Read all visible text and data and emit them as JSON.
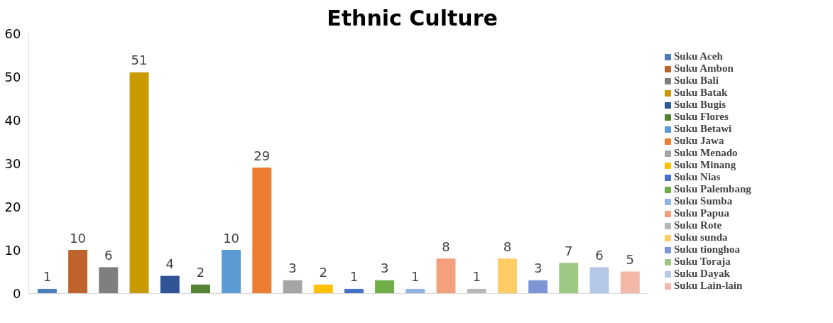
{
  "chart_data": {
    "type": "bar",
    "title": "Ethnic Culture",
    "categories": [
      null,
      null,
      null,
      null,
      null,
      null,
      null,
      null,
      null,
      null,
      null,
      null,
      null,
      null,
      null,
      null,
      null,
      null,
      null,
      null
    ],
    "series": [
      {
        "name": "Suku Aceh",
        "color": "#4a7ebb",
        "values": [
          1,
          null,
          null,
          null,
          null,
          null,
          null,
          null,
          null,
          null,
          null,
          null,
          null,
          null,
          null,
          null,
          null,
          null,
          null,
          null
        ]
      },
      {
        "name": "Suku Ambon",
        "color": "#c0622b",
        "values": [
          null,
          10,
          null,
          null,
          null,
          null,
          null,
          null,
          null,
          null,
          null,
          null,
          null,
          null,
          null,
          null,
          null,
          null,
          null,
          null
        ]
      },
      {
        "name": "Suku Bali",
        "color": "#7f7f7f",
        "values": [
          null,
          null,
          6,
          null,
          null,
          null,
          null,
          null,
          null,
          null,
          null,
          null,
          null,
          null,
          null,
          null,
          null,
          null,
          null,
          null
        ]
      },
      {
        "name": "Suku Batak",
        "color": "#c99a00",
        "values": [
          null,
          null,
          null,
          51,
          null,
          null,
          null,
          null,
          null,
          null,
          null,
          null,
          null,
          null,
          null,
          null,
          null,
          null,
          null,
          null
        ]
      },
      {
        "name": "Suku Bugis",
        "color": "#2f5597",
        "values": [
          null,
          null,
          null,
          null,
          4,
          null,
          null,
          null,
          null,
          null,
          null,
          null,
          null,
          null,
          null,
          null,
          null,
          null,
          null,
          null
        ]
      },
      {
        "name": "Suku Flores",
        "color": "#548235",
        "values": [
          null,
          null,
          null,
          null,
          null,
          2,
          null,
          null,
          null,
          null,
          null,
          null,
          null,
          null,
          null,
          null,
          null,
          null,
          null,
          null
        ]
      },
      {
        "name": "Suku Betawi",
        "color": "#5b9bd5",
        "values": [
          null,
          null,
          null,
          null,
          null,
          null,
          10,
          null,
          null,
          null,
          null,
          null,
          null,
          null,
          null,
          null,
          null,
          null,
          null,
          null
        ]
      },
      {
        "name": "Suku Jawa",
        "color": "#ed7d31",
        "values": [
          null,
          null,
          null,
          null,
          null,
          null,
          null,
          29,
          null,
          null,
          null,
          null,
          null,
          null,
          null,
          null,
          null,
          null,
          null,
          null
        ]
      },
      {
        "name": "Suku Menado",
        "color": "#a5a5a5",
        "values": [
          null,
          null,
          null,
          null,
          null,
          null,
          null,
          null,
          3,
          null,
          null,
          null,
          null,
          null,
          null,
          null,
          null,
          null,
          null,
          null
        ]
      },
      {
        "name": "Suku Minang",
        "color": "#ffc000",
        "values": [
          null,
          null,
          null,
          null,
          null,
          null,
          null,
          null,
          null,
          2,
          null,
          null,
          null,
          null,
          null,
          null,
          null,
          null,
          null,
          null
        ]
      },
      {
        "name": "Suku Nias",
        "color": "#4472c4",
        "values": [
          null,
          null,
          null,
          null,
          null,
          null,
          null,
          null,
          null,
          null,
          1,
          null,
          null,
          null,
          null,
          null,
          null,
          null,
          null,
          null
        ]
      },
      {
        "name": "Suku Palembang",
        "color": "#70ad47",
        "values": [
          null,
          null,
          null,
          null,
          null,
          null,
          null,
          null,
          null,
          null,
          null,
          3,
          null,
          null,
          null,
          null,
          null,
          null,
          null,
          null
        ]
      },
      {
        "name": "Suku Sumba",
        "color": "#8fb4e3",
        "values": [
          null,
          null,
          null,
          null,
          null,
          null,
          null,
          null,
          null,
          null,
          null,
          null,
          1,
          null,
          null,
          null,
          null,
          null,
          null,
          null
        ]
      },
      {
        "name": "Suku Papua",
        "color": "#f4a07c",
        "values": [
          null,
          null,
          null,
          null,
          null,
          null,
          null,
          null,
          null,
          null,
          null,
          null,
          null,
          8,
          null,
          null,
          null,
          null,
          null,
          null
        ]
      },
      {
        "name": "Suku Rote",
        "color": "#b7b7b7",
        "values": [
          null,
          null,
          null,
          null,
          null,
          null,
          null,
          null,
          null,
          null,
          null,
          null,
          null,
          null,
          1,
          null,
          null,
          null,
          null,
          null
        ]
      },
      {
        "name": "Suku sunda",
        "color": "#ffcc66",
        "values": [
          null,
          null,
          null,
          null,
          null,
          null,
          null,
          null,
          null,
          null,
          null,
          null,
          null,
          null,
          null,
          8,
          null,
          null,
          null,
          null
        ]
      },
      {
        "name": "Suku tionghoa",
        "color": "#7f96d6",
        "values": [
          null,
          null,
          null,
          null,
          null,
          null,
          null,
          null,
          null,
          null,
          null,
          null,
          null,
          null,
          null,
          null,
          3,
          null,
          null,
          null
        ]
      },
      {
        "name": "Suku Toraja",
        "color": "#9dc884",
        "values": [
          null,
          null,
          null,
          null,
          null,
          null,
          null,
          null,
          null,
          null,
          null,
          null,
          null,
          null,
          null,
          null,
          null,
          7,
          null,
          null
        ]
      },
      {
        "name": "Suku Dayak",
        "color": "#b4c7e7",
        "values": [
          null,
          null,
          null,
          null,
          null,
          null,
          null,
          null,
          null,
          null,
          null,
          null,
          null,
          null,
          null,
          null,
          null,
          null,
          6,
          null
        ]
      },
      {
        "name": "Suku Lain-lain",
        "color": "#f4b8a8",
        "values": [
          null,
          null,
          null,
          null,
          null,
          null,
          null,
          null,
          null,
          null,
          null,
          null,
          null,
          null,
          null,
          null,
          null,
          null,
          null,
          5
        ]
      }
    ],
    "ylim": [
      0,
      60
    ],
    "yticks": [
      0,
      10,
      20,
      30,
      40,
      50,
      60
    ],
    "grid": false,
    "legend": "right",
    "tick_labels": "y",
    "data_labels": true
  }
}
